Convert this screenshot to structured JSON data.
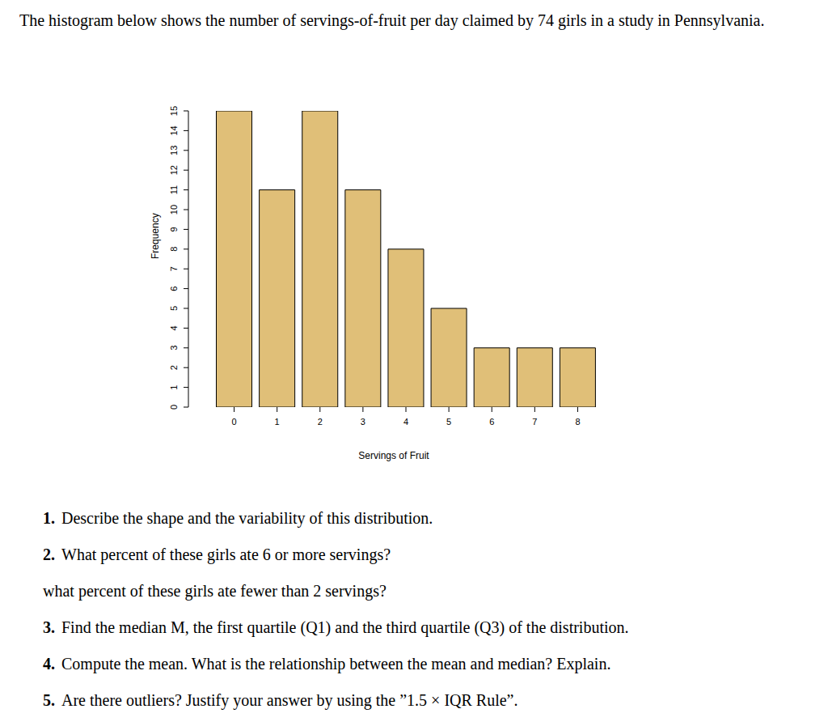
{
  "intro": "The histogram below shows the number of servings-of-fruit per day claimed by 74 girls in a study in Pennsylvania.",
  "chart_data": {
    "type": "bar",
    "x_label": "Servings of Fruit",
    "y_label": "Frequency",
    "categories": [
      "0",
      "1",
      "2",
      "3",
      "4",
      "5",
      "6",
      "7",
      "8"
    ],
    "values": [
      15,
      11,
      15,
      11,
      8,
      5,
      3,
      3,
      3
    ],
    "color": "#e0bf78",
    "ylim": [
      0,
      15
    ],
    "yticks": [
      0,
      1,
      2,
      3,
      4,
      5,
      6,
      7,
      8,
      9,
      10,
      11,
      12,
      13,
      14,
      15
    ],
    "grid": false,
    "data_labels": false
  },
  "questions": [
    {
      "number": "1.",
      "text": "Describe the shape and the variability of this distribution."
    },
    {
      "number": "2.",
      "text": "What percent of these girls ate 6 or more servings?",
      "subtext": "what percent of these girls ate fewer than 2 servings?"
    },
    {
      "number": "3.",
      "text": "Find the median M, the first quartile (Q1) and the third quartile (Q3) of the distribution."
    },
    {
      "number": "4.",
      "text": "Compute the mean. What is the relationship between the mean and median? Explain."
    },
    {
      "number": "5.",
      "text": "Are there outliers? Justify your answer by using the ”1.5 × IQR Rule”."
    }
  ]
}
